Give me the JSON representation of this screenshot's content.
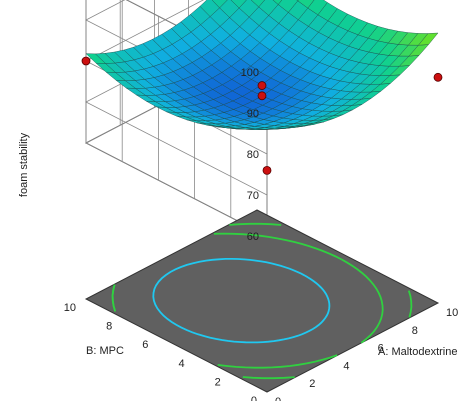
{
  "chart_data": {
    "type": "surface",
    "zlabel": "foam stability",
    "xlabel": "A: Maltodextrine",
    "ylabel": "B: MPC",
    "xlim": [
      0,
      10
    ],
    "ylim": [
      0,
      10
    ],
    "zlim": [
      60,
      100
    ],
    "x_ticks": [
      "0",
      "2",
      "4",
      "6",
      "8",
      "10"
    ],
    "y_ticks": [
      "0",
      "2",
      "4",
      "6",
      "8",
      "10"
    ],
    "z_ticks": [
      "60",
      "70",
      "80",
      "90",
      "100"
    ],
    "grid": true,
    "surface_colormap": [
      "#1040d0",
      "#10b0e0",
      "#10d090",
      "#60e030"
    ],
    "floor_color": "#606060",
    "contour_colors": [
      "#20c8f0",
      "#30d040"
    ],
    "design_point_color": "#cc1010",
    "design_points": [
      {
        "x": 5,
        "y": 5,
        "z": 74.5
      },
      {
        "x": 5,
        "y": 5,
        "z": 72.0
      },
      {
        "x": 0,
        "y": 10,
        "z": 80.0
      },
      {
        "x": 10,
        "y": 10,
        "z": 84.0
      },
      {
        "x": 0,
        "y": 0,
        "z": 76.0
      },
      {
        "x": 10,
        "y": 0,
        "z": 77.0
      }
    ]
  }
}
